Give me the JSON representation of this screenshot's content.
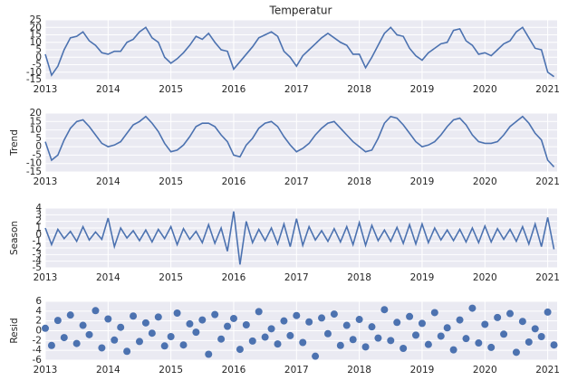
{
  "chart_data": [
    {
      "type": "line",
      "title": "Temperatur",
      "color": "#4c72b0",
      "grid": true,
      "x": [
        2013,
        2013.1,
        2013.2,
        2013.3,
        2013.4,
        2013.5,
        2013.6,
        2013.7,
        2013.8,
        2013.9,
        2014,
        2014.1,
        2014.2,
        2014.3,
        2014.4,
        2014.5,
        2014.6,
        2014.7,
        2014.8,
        2014.9,
        2015,
        2015.1,
        2015.2,
        2015.3,
        2015.4,
        2015.5,
        2015.6,
        2015.7,
        2015.8,
        2015.9,
        2016,
        2016.1,
        2016.2,
        2016.3,
        2016.4,
        2016.5,
        2016.6,
        2016.7,
        2016.8,
        2016.9,
        2017,
        2017.1,
        2017.2,
        2017.3,
        2017.4,
        2017.5,
        2017.6,
        2017.7,
        2017.8,
        2017.9,
        2018,
        2018.1,
        2018.2,
        2018.3,
        2018.4,
        2018.5,
        2018.6,
        2018.7,
        2018.8,
        2018.9,
        2019,
        2019.1,
        2019.2,
        2019.3,
        2019.4,
        2019.5,
        2019.6,
        2019.7,
        2019.8,
        2019.9,
        2020,
        2020.1,
        2020.2,
        2020.3,
        2020.4,
        2020.5,
        2020.6,
        2020.7,
        2020.8,
        2020.9,
        2021,
        2021.1
      ],
      "values": [
        2,
        -12,
        -6,
        5,
        13,
        14,
        17,
        11,
        8,
        3,
        2,
        4,
        4,
        10,
        12,
        17,
        20,
        13,
        10,
        0,
        -4,
        -1,
        3,
        8,
        14,
        12,
        16,
        10,
        5,
        4,
        -8,
        -3,
        2,
        7,
        13,
        15,
        17,
        14,
        4,
        0,
        -6,
        1,
        5,
        9,
        13,
        16,
        13,
        10,
        8,
        2,
        2,
        -7,
        0,
        8,
        16,
        20,
        15,
        14,
        6,
        1,
        -2,
        3,
        6,
        9,
        10,
        18,
        19,
        11,
        8,
        2,
        3,
        1,
        5,
        9,
        11,
        17,
        20,
        13,
        6,
        5,
        -10,
        -13
      ],
      "xlim": [
        2013,
        2021.15
      ],
      "xticks": [
        2013,
        2014,
        2015,
        2016,
        2017,
        2018,
        2019,
        2020,
        2021
      ],
      "ylim": [
        -15,
        25
      ],
      "yticks": [
        -15,
        -10,
        -5,
        0,
        5,
        10,
        15,
        20,
        25
      ]
    },
    {
      "type": "line",
      "y_label": "Trend",
      "color": "#4c72b0",
      "grid": true,
      "x": [
        2013,
        2013.1,
        2013.2,
        2013.3,
        2013.4,
        2013.5,
        2013.6,
        2013.7,
        2013.8,
        2013.9,
        2014,
        2014.1,
        2014.2,
        2014.3,
        2014.4,
        2014.5,
        2014.6,
        2014.7,
        2014.8,
        2014.9,
        2015,
        2015.1,
        2015.2,
        2015.3,
        2015.4,
        2015.5,
        2015.6,
        2015.7,
        2015.8,
        2015.9,
        2016,
        2016.1,
        2016.2,
        2016.3,
        2016.4,
        2016.5,
        2016.6,
        2016.7,
        2016.8,
        2016.9,
        2017,
        2017.1,
        2017.2,
        2017.3,
        2017.4,
        2017.5,
        2017.6,
        2017.7,
        2017.8,
        2017.9,
        2018,
        2018.1,
        2018.2,
        2018.3,
        2018.4,
        2018.5,
        2018.6,
        2018.7,
        2018.8,
        2018.9,
        2019,
        2019.1,
        2019.2,
        2019.3,
        2019.4,
        2019.5,
        2019.6,
        2019.7,
        2019.8,
        2019.9,
        2020,
        2020.1,
        2020.2,
        2020.3,
        2020.4,
        2020.5,
        2020.6,
        2020.7,
        2020.8,
        2020.9,
        2021,
        2021.1
      ],
      "values": [
        3,
        -8,
        -5,
        4,
        11,
        15,
        16,
        12,
        7,
        2,
        0,
        1,
        3,
        8,
        13,
        15,
        18,
        14,
        9,
        2,
        -3,
        -2,
        1,
        6,
        12,
        14,
        14,
        12,
        7,
        3,
        -5,
        -6,
        1,
        5,
        11,
        14,
        15,
        12,
        6,
        1,
        -3,
        -1,
        2,
        7,
        11,
        14,
        15,
        11,
        7,
        3,
        0,
        -3,
        -2,
        5,
        14,
        18,
        17,
        13,
        8,
        3,
        0,
        1,
        3,
        7,
        12,
        16,
        17,
        13,
        7,
        3,
        2,
        2,
        3,
        7,
        12,
        15,
        18,
        14,
        8,
        4,
        -8,
        -12
      ],
      "xlim": [
        2013,
        2021.15
      ],
      "xticks": [
        2013,
        2014,
        2015,
        2016,
        2017,
        2018,
        2019,
        2020,
        2021
      ],
      "ylim": [
        -15,
        20
      ],
      "yticks": [
        -15,
        -10,
        -5,
        0,
        5,
        10,
        15,
        20
      ]
    },
    {
      "type": "line",
      "y_label": "Season",
      "color": "#4c72b0",
      "grid": true,
      "x": [
        2013,
        2013.1,
        2013.2,
        2013.3,
        2013.4,
        2013.5,
        2013.6,
        2013.7,
        2013.8,
        2013.9,
        2014,
        2014.1,
        2014.2,
        2014.3,
        2014.4,
        2014.5,
        2014.6,
        2014.7,
        2014.8,
        2014.9,
        2015,
        2015.1,
        2015.2,
        2015.3,
        2015.4,
        2015.5,
        2015.6,
        2015.7,
        2015.8,
        2015.9,
        2016,
        2016.1,
        2016.2,
        2016.3,
        2016.4,
        2016.5,
        2016.6,
        2016.7,
        2016.8,
        2016.9,
        2017,
        2017.1,
        2017.2,
        2017.3,
        2017.4,
        2017.5,
        2017.6,
        2017.7,
        2017.8,
        2017.9,
        2018,
        2018.1,
        2018.2,
        2018.3,
        2018.4,
        2018.5,
        2018.6,
        2018.7,
        2018.8,
        2018.9,
        2019,
        2019.1,
        2019.2,
        2019.3,
        2019.4,
        2019.5,
        2019.6,
        2019.7,
        2019.8,
        2019.9,
        2020,
        2020.1,
        2020.2,
        2020.3,
        2020.4,
        2020.5,
        2020.6,
        2020.7,
        2020.8,
        2020.9,
        2021,
        2021.1
      ],
      "values": [
        1,
        -1.5,
        0.8,
        -0.6,
        0.5,
        -1,
        1.2,
        -0.8,
        0.4,
        -0.7,
        2.5,
        -1.8,
        1,
        -0.5,
        0.6,
        -0.9,
        0.7,
        -1.1,
        0.8,
        -0.6,
        1.2,
        -1.5,
        0.9,
        -0.7,
        0.5,
        -1.2,
        1.5,
        -1.3,
        1,
        -2.5,
        3.5,
        -4.5,
        2,
        -1.2,
        0.8,
        -0.9,
        1,
        -1.4,
        1.6,
        -1.8,
        2.4,
        -1.6,
        1.2,
        -0.8,
        0.6,
        -1,
        0.9,
        -1.1,
        1.2,
        -1.5,
        1.8,
        -1.6,
        1.4,
        -0.9,
        0.7,
        -1,
        1.1,
        -1.3,
        1.5,
        -1.4,
        1.6,
        -1.2,
        1,
        -0.8,
        0.7,
        -0.9,
        0.8,
        -1.1,
        1,
        -1.2,
        1.3,
        -1.1,
        0.9,
        -0.7,
        0.8,
        -1,
        1.2,
        -1.4,
        1.6,
        -1.8,
        2.6,
        -2.2
      ],
      "xlim": [
        2013,
        2021.15
      ],
      "xticks": [
        2013,
        2014,
        2015,
        2016,
        2017,
        2018,
        2019,
        2020,
        2021
      ],
      "ylim": [
        -5,
        4
      ],
      "yticks": [
        -5,
        -4,
        -3,
        -2,
        -1,
        0,
        1,
        2,
        3,
        4
      ]
    },
    {
      "type": "scatter",
      "y_label": "Resid",
      "color": "#4c72b0",
      "grid": true,
      "x": [
        2013,
        2013.1,
        2013.2,
        2013.3,
        2013.4,
        2013.5,
        2013.6,
        2013.7,
        2013.8,
        2013.9,
        2014,
        2014.1,
        2014.2,
        2014.3,
        2014.4,
        2014.5,
        2014.6,
        2014.7,
        2014.8,
        2014.9,
        2015,
        2015.1,
        2015.2,
        2015.3,
        2015.4,
        2015.5,
        2015.6,
        2015.7,
        2015.8,
        2015.9,
        2016,
        2016.1,
        2016.2,
        2016.3,
        2016.4,
        2016.5,
        2016.6,
        2016.7,
        2016.8,
        2016.9,
        2017,
        2017.1,
        2017.2,
        2017.3,
        2017.4,
        2017.5,
        2017.6,
        2017.7,
        2017.8,
        2017.9,
        2018,
        2018.1,
        2018.2,
        2018.3,
        2018.4,
        2018.5,
        2018.6,
        2018.7,
        2018.8,
        2018.9,
        2019,
        2019.1,
        2019.2,
        2019.3,
        2019.4,
        2019.5,
        2019.6,
        2019.7,
        2019.8,
        2019.9,
        2020,
        2020.1,
        2020.2,
        2020.3,
        2020.4,
        2020.5,
        2020.6,
        2020.7,
        2020.8,
        2020.9,
        2021,
        2021.1
      ],
      "values": [
        0.5,
        -3,
        2.1,
        -1.4,
        3.2,
        -2.6,
        1.1,
        -0.8,
        4.1,
        -3.5,
        2.4,
        -1.9,
        0.7,
        -4.2,
        3,
        -2.2,
        1.6,
        -0.5,
        2.8,
        -3.1,
        -1.2,
        3.6,
        -2.9,
        1.4,
        -0.3,
        2.2,
        -4.8,
        3.3,
        -1.7,
        0.9,
        2.5,
        -3.8,
        1.2,
        -2.1,
        3.9,
        -1.3,
        0.4,
        -2.7,
        2,
        -1,
        3.1,
        -2.4,
        1.8,
        -5.2,
        2.6,
        -0.6,
        3.4,
        -3,
        1.1,
        -1.8,
        2.3,
        -3.3,
        0.8,
        -1.5,
        4.3,
        -2,
        1.7,
        -3.6,
        2.9,
        -0.9,
        1.5,
        -2.8,
        3.7,
        -1.1,
        0.6,
        -3.9,
        2.2,
        -1.6,
        4.6,
        -2.5,
        1.3,
        -3.4,
        2.7,
        -0.7,
        3.5,
        -4.4,
        1.9,
        -2.3,
        0.4,
        -1.2,
        3.8,
        -2.9
      ],
      "xlim": [
        2013,
        2021.15
      ],
      "xticks": [
        2013,
        2014,
        2015,
        2016,
        2017,
        2018,
        2019,
        2020,
        2021
      ],
      "ylim": [
        -6,
        6
      ],
      "yticks": [
        -6,
        -4,
        -2,
        0,
        2,
        4,
        6
      ]
    }
  ]
}
